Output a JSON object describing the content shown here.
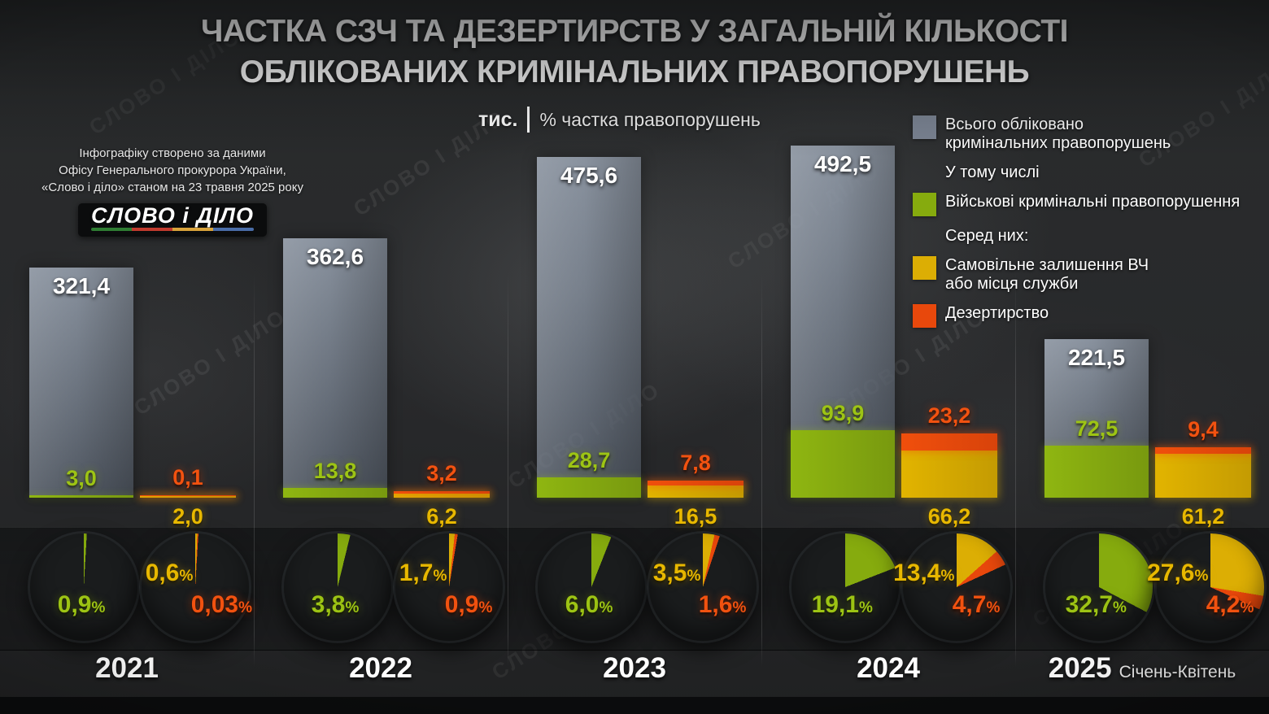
{
  "title": {
    "line1": "ЧАСТКА СЗЧ ТА ДЕЗЕРТИРСТВ У ЗАГАЛЬНІЙ КІЛЬКОСТІ",
    "line2": "ОБЛІКОВАНИХ КРИМІНАЛЬНИХ ПРАВОПОРУШЕНЬ"
  },
  "source": {
    "line1": "Інфографіку створено за даними",
    "line2": "Офісу Генерального прокурора України,",
    "line3": "«Слово і діло» станом на 23 травня 2025 року",
    "logo_text": "СЛОВО і ДІЛО"
  },
  "axis": {
    "unit_label": "тис.",
    "share_label": "% частка правопорушень"
  },
  "legend": {
    "total_line1": "Всього обліковано",
    "total_line2": "кримінальних правопорушень",
    "including": "У тому числі",
    "military": "Військові кримінальні правопорушення",
    "among_them": "Серед них:",
    "awol_line1": "Самовільне залишення ВЧ",
    "awol_line2": "або місця служби",
    "desertion": "Дезертирство",
    "colors": {
      "total": "#7b8493",
      "military": "#86ab0e",
      "awol": "#dcae04",
      "desertion": "#e8480c"
    }
  },
  "watermark": "СЛОВО І ДІЛО",
  "misc": {
    "percent_sign": "%"
  },
  "chart_data": {
    "type": "bar",
    "title": "ЧАСТКА СЗЧ ТА ДЕЗЕРТИРСТВ У ЗАГАЛЬНІЙ КІЛЬКОСТІ ОБЛІКОВАНИХ КРИМІНАЛЬНИХ ПРАВОПОРУШЕНЬ",
    "unit": "тис.",
    "categories": [
      "2021",
      "2022",
      "2023",
      "2024",
      "2025"
    ],
    "series": [
      {
        "name": "Всього обліковано кримінальних правопорушень",
        "color": "#7b8493",
        "values": [
          321.4,
          362.6,
          475.6,
          492.5,
          221.5
        ]
      },
      {
        "name": "Військові кримінальні правопорушення",
        "color": "#86ab0e",
        "values": [
          3.0,
          13.8,
          28.7,
          93.9,
          72.5
        ]
      },
      {
        "name": "Самовільне залишення ВЧ або місця служби",
        "color": "#dcae04",
        "values": [
          2.0,
          6.2,
          16.5,
          66.2,
          61.2
        ]
      },
      {
        "name": "Дезертирство",
        "color": "#e8480c",
        "values": [
          0.1,
          3.2,
          7.8,
          23.2,
          9.4
        ]
      }
    ],
    "groups": [
      {
        "year": "2021",
        "note": "",
        "total": {
          "value": 321.4,
          "label": "321,4"
        },
        "military": {
          "value": 3.0,
          "label": "3,0"
        },
        "awol": {
          "value": 2.0,
          "label": "2,0"
        },
        "desertion": {
          "value": 0.1,
          "label": "0,1"
        },
        "pies": {
          "military": {
            "pct": 0.9,
            "label": "0,9"
          },
          "awol": {
            "pct": 0.6,
            "label": "0,6"
          },
          "desertion": {
            "pct": 0.03,
            "label": "0,03"
          }
        }
      },
      {
        "year": "2022",
        "note": "",
        "total": {
          "value": 362.6,
          "label": "362,6"
        },
        "military": {
          "value": 13.8,
          "label": "13,8"
        },
        "awol": {
          "value": 6.2,
          "label": "6,2"
        },
        "desertion": {
          "value": 3.2,
          "label": "3,2"
        },
        "pies": {
          "military": {
            "pct": 3.8,
            "label": "3,8"
          },
          "awol": {
            "pct": 1.7,
            "label": "1,7"
          },
          "desertion": {
            "pct": 0.9,
            "label": "0,9"
          }
        }
      },
      {
        "year": "2023",
        "note": "",
        "total": {
          "value": 475.6,
          "label": "475,6"
        },
        "military": {
          "value": 28.7,
          "label": "28,7"
        },
        "awol": {
          "value": 16.5,
          "label": "16,5"
        },
        "desertion": {
          "value": 7.8,
          "label": "7,8"
        },
        "pies": {
          "military": {
            "pct": 6.0,
            "label": "6,0"
          },
          "awol": {
            "pct": 3.5,
            "label": "3,5"
          },
          "desertion": {
            "pct": 1.6,
            "label": "1,6"
          }
        }
      },
      {
        "year": "2024",
        "note": "",
        "total": {
          "value": 492.5,
          "label": "492,5"
        },
        "military": {
          "value": 93.9,
          "label": "93,9"
        },
        "awol": {
          "value": 66.2,
          "label": "66,2"
        },
        "desertion": {
          "value": 23.2,
          "label": "23,2"
        },
        "pies": {
          "military": {
            "pct": 19.1,
            "label": "19,1"
          },
          "awol": {
            "pct": 13.4,
            "label": "13,4"
          },
          "desertion": {
            "pct": 4.7,
            "label": "4,7"
          }
        }
      },
      {
        "year": "2025",
        "note": "Січень-Квітень",
        "total": {
          "value": 221.5,
          "label": "221,5"
        },
        "military": {
          "value": 72.5,
          "label": "72,5"
        },
        "awol": {
          "value": 61.2,
          "label": "61,2"
        },
        "desertion": {
          "value": 9.4,
          "label": "9,4"
        },
        "pies": {
          "military": {
            "pct": 32.7,
            "label": "32,7"
          },
          "awol": {
            "pct": 27.6,
            "label": "27,6"
          },
          "desertion": {
            "pct": 4.2,
            "label": "4,2"
          }
        }
      }
    ],
    "layout_hints": {
      "legend_position": "top-right",
      "grid": false,
      "share_pies_below_bars": true
    }
  }
}
